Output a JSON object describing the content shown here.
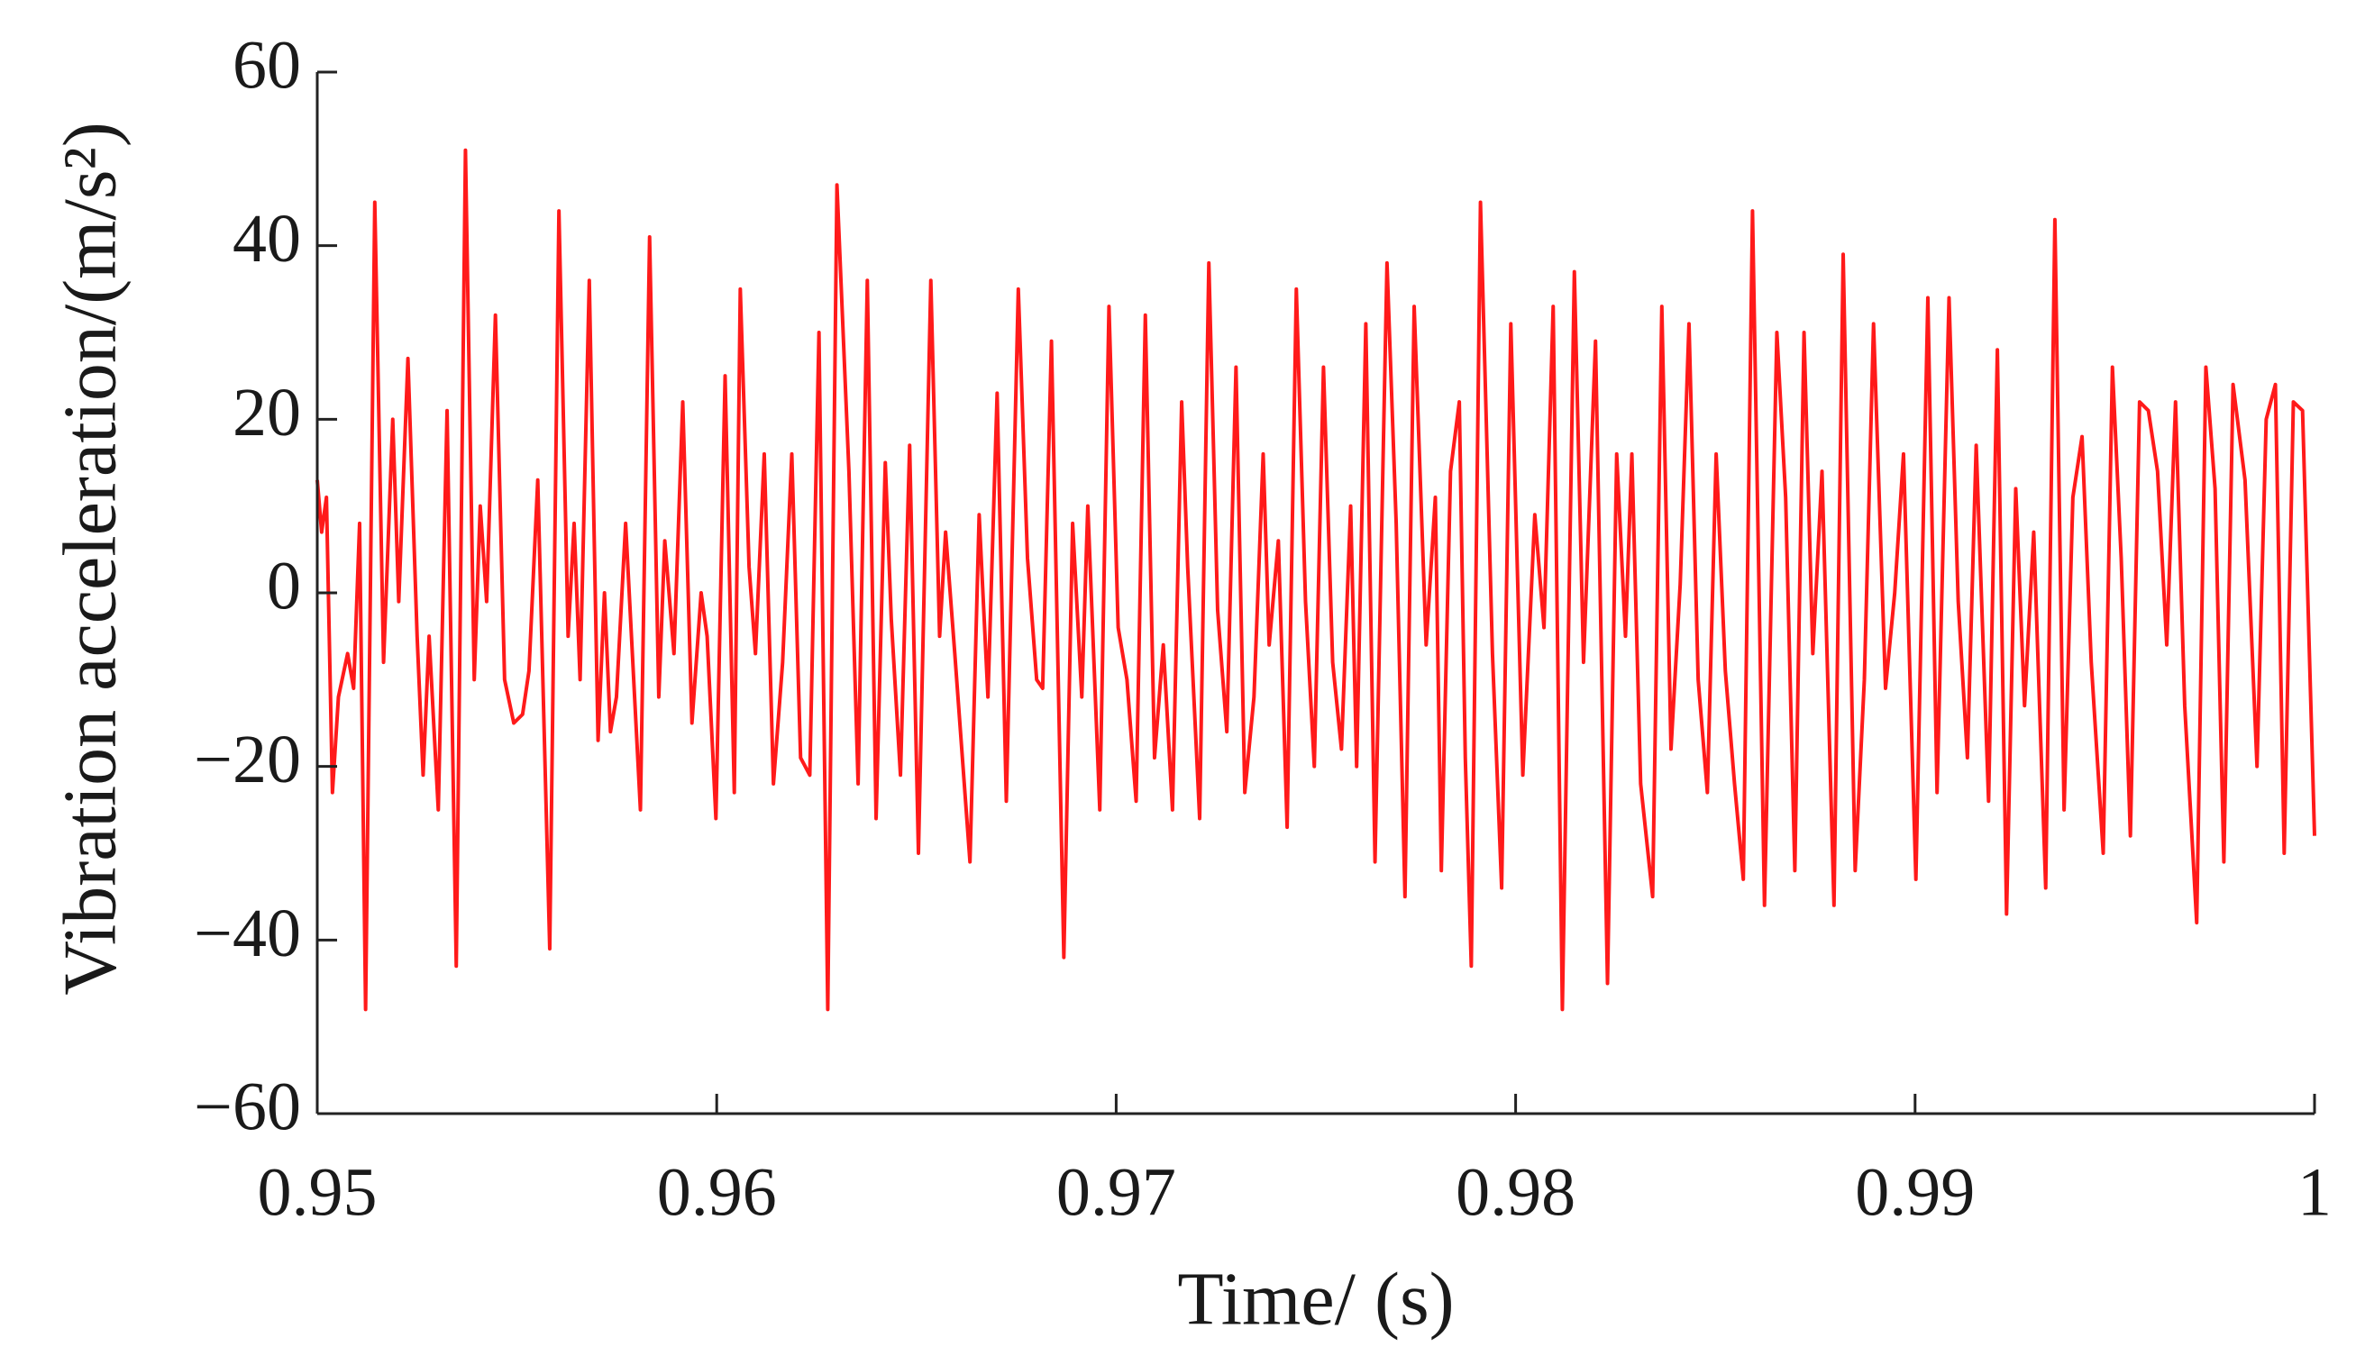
{
  "chart_data": {
    "type": "line",
    "xlabel": "Time/ (s)",
    "ylabel": "Vibration acceleration/(m/s²)",
    "xlim": [
      0.95,
      1
    ],
    "xticks": [
      0.95,
      0.96,
      0.97,
      0.98,
      0.99,
      1
    ],
    "ylim": [
      -60,
      60
    ],
    "yticks": [
      {
        "value": -60,
        "label": "−60"
      },
      {
        "value": -40,
        "label": "−40"
      },
      {
        "value": -20,
        "label": "−20"
      },
      0,
      20,
      40,
      60
    ],
    "grid": false,
    "series": [
      {
        "color": "#ff1a1a",
        "x": [
          0.95,
          0.95011,
          0.95023,
          0.95038,
          0.95053,
          0.95076,
          0.95091,
          0.95106,
          0.95121,
          0.95144,
          0.95166,
          0.95189,
          0.95204,
          0.95227,
          0.9525,
          0.95265,
          0.9528,
          0.95303,
          0.95325,
          0.95348,
          0.95371,
          0.95393,
          0.95408,
          0.95424,
          0.95446,
          0.95469,
          0.95492,
          0.95514,
          0.9553,
          0.95552,
          0.95582,
          0.95605,
          0.95628,
          0.95643,
          0.95658,
          0.95681,
          0.95703,
          0.95719,
          0.95734,
          0.95749,
          0.95772,
          0.95809,
          0.95832,
          0.95855,
          0.9587,
          0.95893,
          0.95915,
          0.95938,
          0.95961,
          0.95976,
          0.95998,
          0.96021,
          0.96044,
          0.96059,
          0.96081,
          0.96097,
          0.96119,
          0.96142,
          0.96165,
          0.96188,
          0.9621,
          0.96233,
          0.96256,
          0.96278,
          0.96301,
          0.96331,
          0.96354,
          0.96377,
          0.96399,
          0.96422,
          0.96437,
          0.9646,
          0.96483,
          0.96505,
          0.96536,
          0.96558,
          0.96573,
          0.96596,
          0.96634,
          0.96657,
          0.96679,
          0.96702,
          0.96725,
          0.96755,
          0.96778,
          0.96801,
          0.96816,
          0.96838,
          0.96869,
          0.96891,
          0.96914,
          0.96929,
          0.96959,
          0.96982,
          0.97005,
          0.97027,
          0.9705,
          0.97073,
          0.97096,
          0.97118,
          0.97141,
          0.97164,
          0.97179,
          0.97209,
          0.97232,
          0.97254,
          0.97277,
          0.973,
          0.97322,
          0.97345,
          0.97368,
          0.97383,
          0.97406,
          0.97428,
          0.97451,
          0.97474,
          0.97496,
          0.97519,
          0.97542,
          0.97564,
          0.97587,
          0.97602,
          0.97625,
          0.97648,
          0.97678,
          0.97701,
          0.97723,
          0.97746,
          0.97776,
          0.97799,
          0.97814,
          0.97837,
          0.97859,
          0.97874,
          0.97889,
          0.97912,
          0.97942,
          0.97965,
          0.97988,
          0.98018,
          0.98048,
          0.98071,
          0.98094,
          0.98117,
          0.98147,
          0.9817,
          0.982,
          0.9823,
          0.98253,
          0.98275,
          0.98291,
          0.98313,
          0.98343,
          0.98366,
          0.98389,
          0.98412,
          0.98434,
          0.98457,
          0.9848,
          0.98502,
          0.98525,
          0.98548,
          0.9857,
          0.98593,
          0.98623,
          0.98654,
          0.98676,
          0.98699,
          0.98722,
          0.98744,
          0.98767,
          0.98797,
          0.9882,
          0.9885,
          0.98873,
          0.98896,
          0.98926,
          0.98949,
          0.98971,
          0.99002,
          0.99032,
          0.99055,
          0.99085,
          0.99108,
          0.99131,
          0.99153,
          0.99184,
          0.99206,
          0.99229,
          0.99252,
          0.99274,
          0.99297,
          0.99327,
          0.9935,
          0.99373,
          0.99395,
          0.99418,
          0.99441,
          0.99471,
          0.99494,
          0.99516,
          0.99539,
          0.99562,
          0.99584,
          0.99607,
          0.9963,
          0.99652,
          0.99675,
          0.99705,
          0.99728,
          0.99751,
          0.99773,
          0.99796,
          0.99826,
          0.99856,
          0.99879,
          0.99902,
          0.99924,
          0.99947,
          0.9997,
          1.0
        ],
        "values": [
          13,
          7,
          11,
          -23,
          -12,
          -7,
          -11,
          8,
          -48,
          45,
          -8,
          20,
          -1,
          27,
          -5,
          -21,
          -5,
          -25,
          21,
          -43,
          51,
          -10,
          10,
          -1,
          32,
          -10,
          -15,
          -14,
          -9,
          13,
          -41,
          44,
          -5,
          8,
          -10,
          36,
          -17,
          0,
          -16,
          -12,
          8,
          -25,
          41,
          -12,
          6,
          -7,
          22,
          -15,
          0,
          -5,
          -26,
          25,
          -23,
          35,
          3,
          -7,
          16,
          -22,
          -8,
          16,
          -19,
          -21,
          30,
          -48,
          47,
          14,
          -22,
          36,
          -26,
          15,
          -3,
          -21,
          17,
          -30,
          36,
          -5,
          7,
          -7,
          -31,
          9,
          -12,
          23,
          -24,
          35,
          4,
          -10,
          -11,
          29,
          -42,
          8,
          -12,
          10,
          -25,
          33,
          -4,
          -10,
          -24,
          32,
          -19,
          -6,
          -25,
          22,
          3,
          -26,
          38,
          -2,
          -16,
          26,
          -23,
          -12,
          16,
          -6,
          6,
          -27,
          35,
          -1,
          -20,
          26,
          -8,
          -18,
          10,
          -20,
          31,
          -31,
          38,
          8,
          -35,
          33,
          -6,
          11,
          -32,
          14,
          22,
          -19,
          -43,
          45,
          -7,
          -34,
          31,
          -21,
          9,
          -4,
          33,
          -48,
          37,
          -8,
          29,
          -45,
          16,
          -5,
          16,
          -22,
          -35,
          33,
          -18,
          1,
          31,
          -10,
          -23,
          16,
          -9,
          -22,
          -33,
          44,
          -36,
          30,
          11,
          -32,
          30,
          -7,
          14,
          -36,
          39,
          -32,
          -10,
          31,
          -11,
          0,
          16,
          -33,
          34,
          -23,
          34,
          -1,
          -19,
          17,
          -24,
          28,
          -37,
          12,
          -13,
          7,
          -34,
          43,
          -25,
          11,
          18,
          -8,
          -30,
          26,
          4,
          -28,
          22,
          21,
          14,
          -6,
          22,
          -13,
          -38,
          26,
          12,
          -31,
          24,
          13,
          -20,
          20,
          24,
          -30,
          22,
          21,
          -28
        ]
      }
    ]
  }
}
